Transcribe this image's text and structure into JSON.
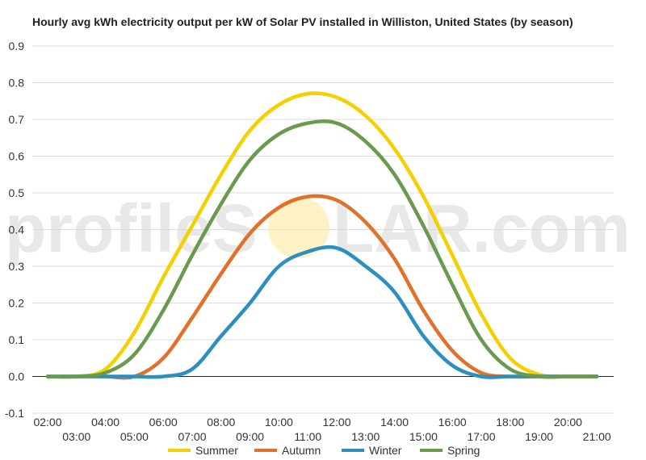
{
  "chart_data": {
    "type": "line",
    "title": "Hourly avg kWh electricity output per kW of Solar PV installed in Williston, United States (by season)",
    "xlabel": "",
    "ylabel": "",
    "x_ticks_top": [
      "02:00",
      "04:00",
      "06:00",
      "08:00",
      "10:00",
      "12:00",
      "14:00",
      "16:00",
      "18:00",
      "20:00"
    ],
    "x_ticks_bottom": [
      "03:00",
      "05:00",
      "07:00",
      "09:00",
      "11:00",
      "13:00",
      "15:00",
      "17:00",
      "19:00",
      "21:00"
    ],
    "y_ticks": [
      "0.9",
      "0.8",
      "0.7",
      "0.6",
      "0.5",
      "0.4",
      "0.3",
      "0.2",
      "0.1",
      "0.0",
      "-0.1"
    ],
    "ylim": [
      -0.1,
      0.9
    ],
    "x": [
      "02:00",
      "03:00",
      "04:00",
      "05:00",
      "06:00",
      "07:00",
      "08:00",
      "09:00",
      "10:00",
      "11:00",
      "12:00",
      "13:00",
      "14:00",
      "15:00",
      "16:00",
      "17:00",
      "18:00",
      "19:00",
      "20:00",
      "21:00"
    ],
    "series": [
      {
        "name": "Summer",
        "color": "#f5d000",
        "values": [
          0,
          0,
          0.02,
          0.12,
          0.27,
          0.41,
          0.55,
          0.67,
          0.74,
          0.77,
          0.76,
          0.71,
          0.62,
          0.49,
          0.33,
          0.17,
          0.05,
          0.005,
          0,
          0
        ]
      },
      {
        "name": "Autumn",
        "color": "#e0702a",
        "values": [
          0,
          0,
          0,
          0,
          0.05,
          0.16,
          0.28,
          0.39,
          0.46,
          0.49,
          0.48,
          0.42,
          0.32,
          0.18,
          0.07,
          0.01,
          0,
          0,
          0,
          0
        ]
      },
      {
        "name": "Winter",
        "color": "#2b8fbf",
        "values": [
          0,
          0,
          0,
          0,
          0,
          0.02,
          0.11,
          0.2,
          0.3,
          0.34,
          0.35,
          0.3,
          0.23,
          0.11,
          0.03,
          0,
          0,
          0,
          0,
          0
        ]
      },
      {
        "name": "Spring",
        "color": "#6a9a4e",
        "values": [
          0,
          0,
          0.01,
          0.06,
          0.18,
          0.33,
          0.47,
          0.59,
          0.66,
          0.69,
          0.69,
          0.64,
          0.55,
          0.41,
          0.25,
          0.1,
          0.02,
          0,
          0,
          0
        ]
      }
    ],
    "grid": true,
    "legend_position": "bottom-center"
  },
  "watermark": {
    "text_left": "profileS",
    "text_right": "LAR.com"
  }
}
